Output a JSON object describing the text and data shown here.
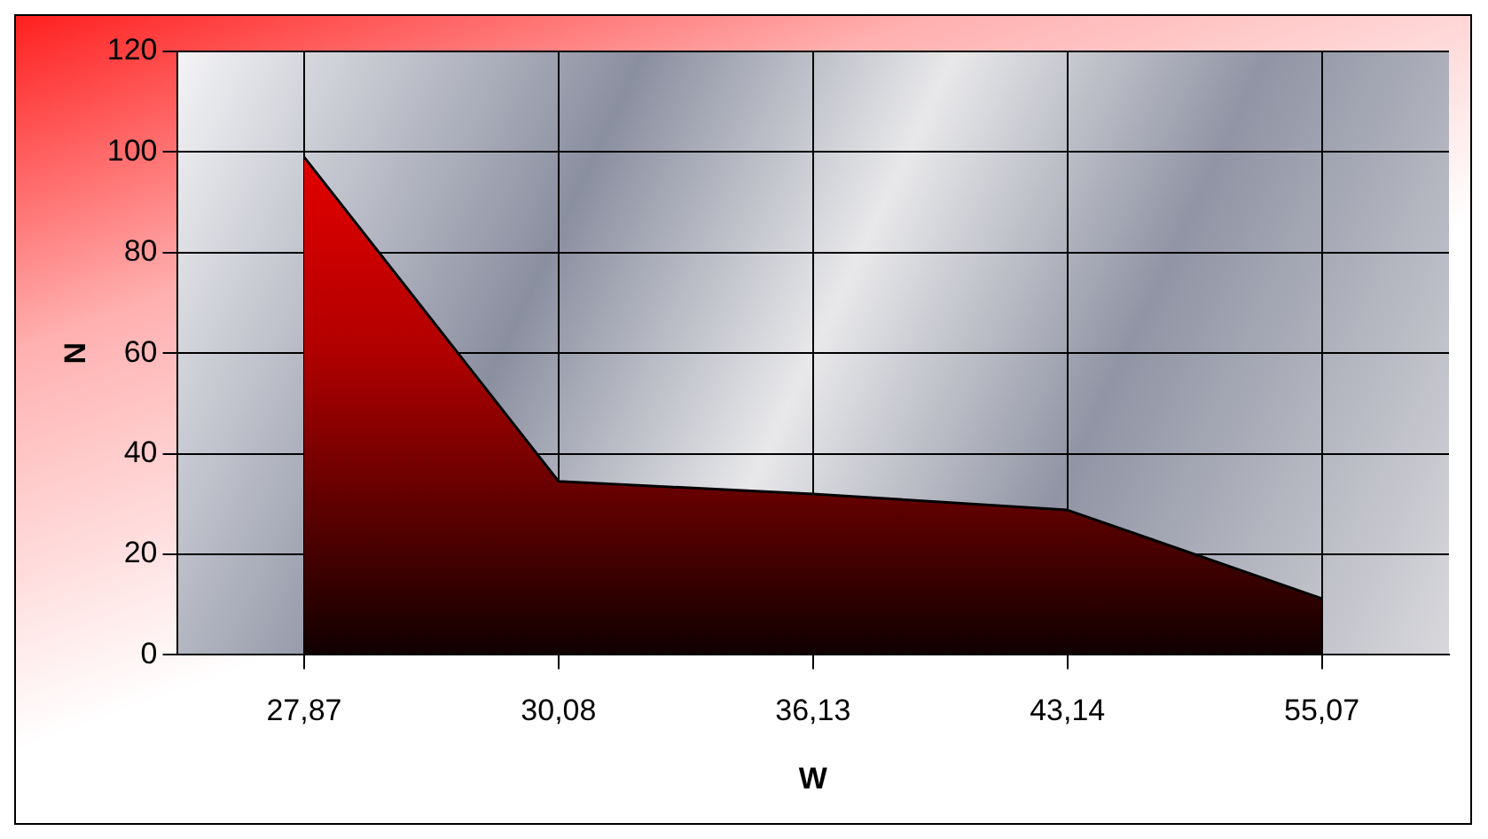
{
  "chart_data": {
    "type": "area",
    "xlabel": "W",
    "ylabel": "N",
    "categories": [
      "27,87",
      "30,08",
      "36,13",
      "43,14",
      "55,07"
    ],
    "values": [
      99,
      34.5,
      32,
      28.8,
      11.2
    ],
    "color": "#b00000",
    "ylim": [
      0,
      120
    ],
    "yticks": [
      0,
      20,
      40,
      60,
      80,
      100,
      120
    ],
    "grid": true,
    "legend": false
  }
}
